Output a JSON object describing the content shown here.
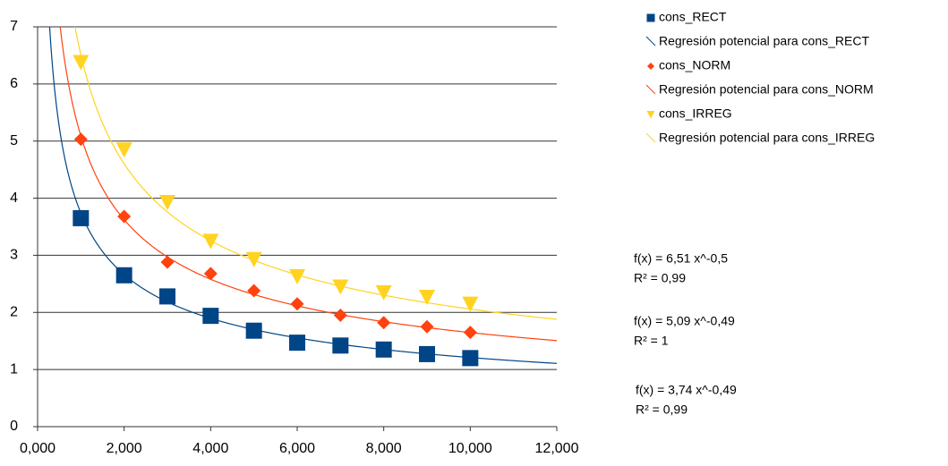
{
  "chart_data": {
    "type": "scatter",
    "x": [
      1,
      2,
      3,
      4,
      5,
      6,
      7,
      8,
      9,
      10
    ],
    "xlim": [
      0,
      12
    ],
    "xticks": [
      {
        "value": 0,
        "label": "0,000"
      },
      {
        "value": 2,
        "label": "2,000"
      },
      {
        "value": 4,
        "label": "4,000"
      },
      {
        "value": 6,
        "label": "6,000"
      },
      {
        "value": 8,
        "label": "8,000"
      },
      {
        "value": 10,
        "label": "10,000"
      },
      {
        "value": 12,
        "label": "12,000"
      }
    ],
    "ylim": [
      0,
      7
    ],
    "yticks": [
      0,
      1,
      2,
      3,
      4,
      5,
      6,
      7
    ],
    "grid": true,
    "series": [
      {
        "name": "cons_RECT",
        "color": "#004586",
        "marker": "square",
        "values": [
          3.65,
          2.65,
          2.28,
          1.94,
          1.68,
          1.47,
          1.42,
          1.35,
          1.27,
          1.2
        ],
        "trend": {
          "name": "Regresión potencial para cons_RECT",
          "color": "#004586",
          "a": 3.74,
          "b": -0.49,
          "equation": "f(x) = 3,74 x^-0,49",
          "r2": "R² = 0,99"
        }
      },
      {
        "name": "cons_NORM",
        "color": "#ff420e",
        "marker": "diamond",
        "values": [
          5.03,
          3.68,
          2.88,
          2.68,
          2.38,
          2.15,
          1.95,
          1.82,
          1.75,
          1.65
        ],
        "trend": {
          "name": "Regresión potencial para cons_NORM",
          "color": "#ff420e",
          "a": 5.09,
          "b": -0.49,
          "equation": "f(x) = 5,09 x^-0,49",
          "r2": "R² = 1"
        }
      },
      {
        "name": "cons_IRREG",
        "color": "#ffd320",
        "marker": "triangle",
        "values": [
          6.38,
          4.85,
          3.93,
          3.25,
          2.93,
          2.63,
          2.45,
          2.35,
          2.27,
          2.15
        ],
        "trend": {
          "name": "Regresión potencial para cons_IRREG",
          "color": "#ffd320",
          "a": 6.51,
          "b": -0.5,
          "equation": "f(x) = 6,51 x^-0,5",
          "r2": "R² = 0,99"
        }
      }
    ]
  }
}
